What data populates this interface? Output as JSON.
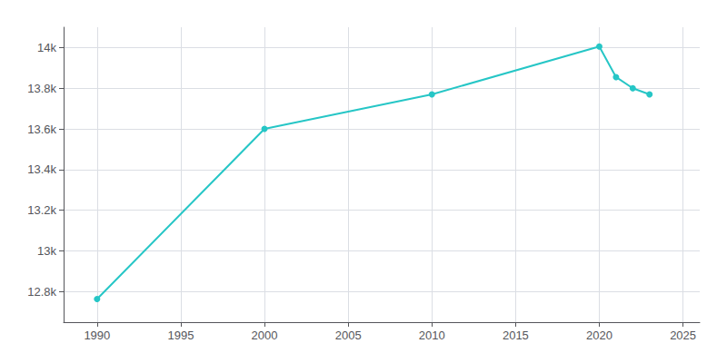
{
  "chart_data": {
    "type": "line",
    "x": [
      1990,
      2000,
      2010,
      2020,
      2021,
      2022,
      2023
    ],
    "values": [
      12764,
      13600,
      13770,
      14005,
      13855,
      13800,
      13770
    ],
    "color": "#26C6C6",
    "marker": "circle",
    "xlim": [
      1988,
      2026
    ],
    "xticks": [
      1990,
      1995,
      2000,
      2005,
      2010,
      2015,
      2020,
      2025
    ],
    "ylim": [
      12650,
      14100
    ],
    "yticks": [
      {
        "value": 12800,
        "label": "12.8k"
      },
      {
        "value": 13000,
        "label": "13k"
      },
      {
        "value": 13200,
        "label": "13.2k"
      },
      {
        "value": 13400,
        "label": "13.4k"
      },
      {
        "value": 13600,
        "label": "13.6k"
      },
      {
        "value": 13800,
        "label": "13.8k"
      },
      {
        "value": 14000,
        "label": "14k"
      }
    ],
    "grid": true
  }
}
